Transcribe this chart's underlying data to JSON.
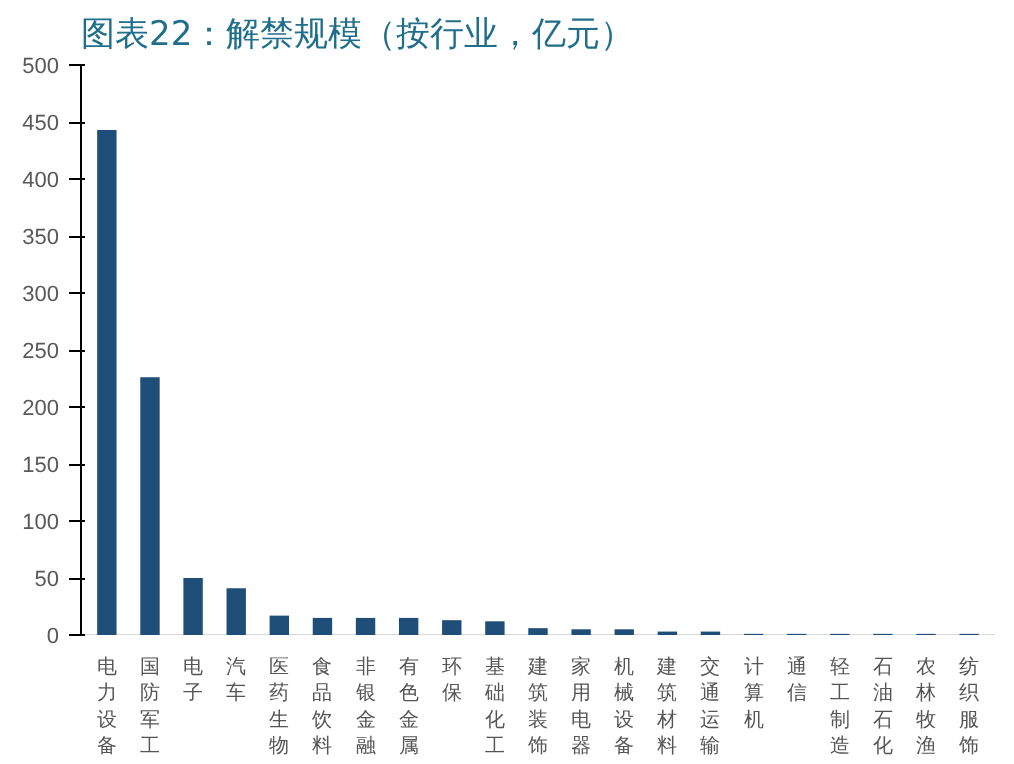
{
  "chart_data": {
    "type": "bar",
    "title": "图表22：解禁规模（按行业，亿元）",
    "categories": [
      "电力设备",
      "国防军工",
      "电子",
      "汽车",
      "医药生物",
      "食品饮料",
      "非银金融",
      "有色金属",
      "环保",
      "基础化工",
      "建筑装饰",
      "家用电器",
      "机械设备",
      "建筑材料",
      "交通运输",
      "计算机",
      "通信",
      "轻工制造",
      "石油石化",
      "农林牧渔",
      "纺织服饰"
    ],
    "values": [
      443,
      226,
      50,
      41,
      17,
      15,
      15,
      15,
      13,
      12,
      6,
      5,
      5,
      3,
      3,
      1,
      1,
      1,
      1,
      1,
      1
    ],
    "color": "#1f4e79",
    "ylim": [
      0,
      500
    ],
    "yticks": [
      0,
      50,
      100,
      150,
      200,
      250,
      300,
      350,
      400,
      450,
      500
    ],
    "grid": false
  }
}
